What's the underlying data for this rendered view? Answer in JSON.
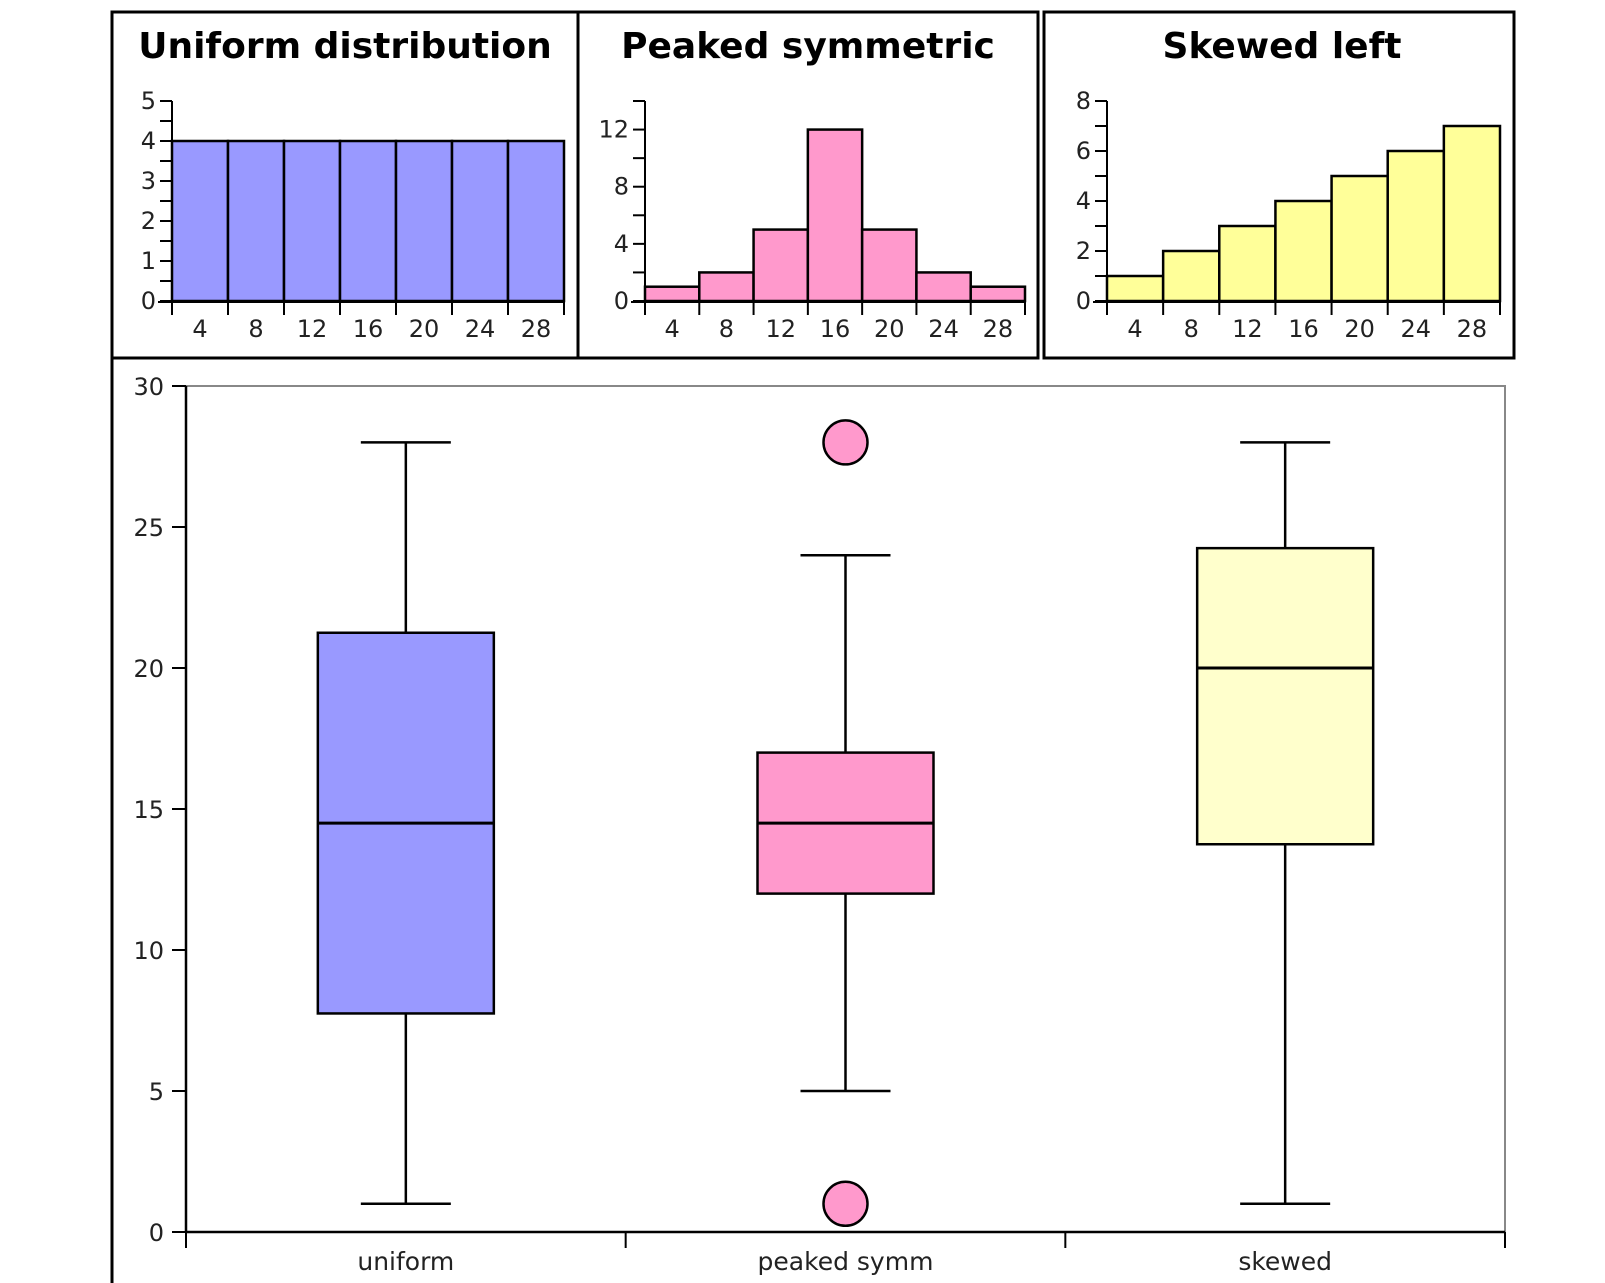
{
  "colors": {
    "uniform": "#9999ff",
    "peaked": "#ff99cc",
    "skewed": "#ffff99",
    "skewed_box": "#ffffcc",
    "stroke": "#000000",
    "frame": "#888888"
  },
  "chart_data": [
    {
      "type": "bar",
      "title": "Uniform distribution",
      "bins": [
        4,
        8,
        12,
        16,
        20,
        24,
        28
      ],
      "values": [
        4,
        4,
        4,
        4,
        4,
        4,
        4
      ],
      "ylim": [
        0,
        5
      ],
      "yticks": [
        0,
        1,
        2,
        3,
        4,
        5
      ],
      "xticks": [
        4,
        8,
        12,
        16,
        20,
        24,
        28
      ],
      "color": "uniform"
    },
    {
      "type": "bar",
      "title": "Peaked symmetric",
      "bins": [
        4,
        8,
        12,
        16,
        20,
        24,
        28
      ],
      "values": [
        1,
        2,
        5,
        12,
        5,
        2,
        1
      ],
      "ylim": [
        0,
        14
      ],
      "yticks": [
        0,
        4,
        8,
        12
      ],
      "xticks": [
        4,
        8,
        12,
        16,
        20,
        24,
        28
      ],
      "color": "peaked"
    },
    {
      "type": "bar",
      "title": "Skewed left",
      "bins": [
        4,
        8,
        12,
        16,
        20,
        24,
        28
      ],
      "values": [
        1,
        2,
        3,
        4,
        5,
        6,
        7
      ],
      "ylim": [
        0,
        8
      ],
      "yticks": [
        0,
        2,
        4,
        6,
        8
      ],
      "xticks": [
        4,
        8,
        12,
        16,
        20,
        24,
        28
      ],
      "color": "skewed"
    },
    {
      "type": "box",
      "ylim": [
        0,
        30
      ],
      "yticks": [
        0,
        5,
        10,
        15,
        20,
        25,
        30
      ],
      "groups": [
        {
          "label": "uniform",
          "whisker_low": 1,
          "q1": 7.75,
          "median": 14.5,
          "q3": 21.25,
          "whisker_high": 28,
          "outliers": [],
          "color": "uniform"
        },
        {
          "label": "peaked symm",
          "whisker_low": 5,
          "q1": 12,
          "median": 14.5,
          "q3": 17,
          "whisker_high": 24,
          "outliers": [
            1,
            28
          ],
          "color": "peaked"
        },
        {
          "label": "skewed",
          "whisker_low": 1,
          "q1": 13.75,
          "median": 20,
          "q3": 24.25,
          "whisker_high": 28,
          "outliers": [],
          "color": "skewed_box"
        }
      ]
    }
  ]
}
